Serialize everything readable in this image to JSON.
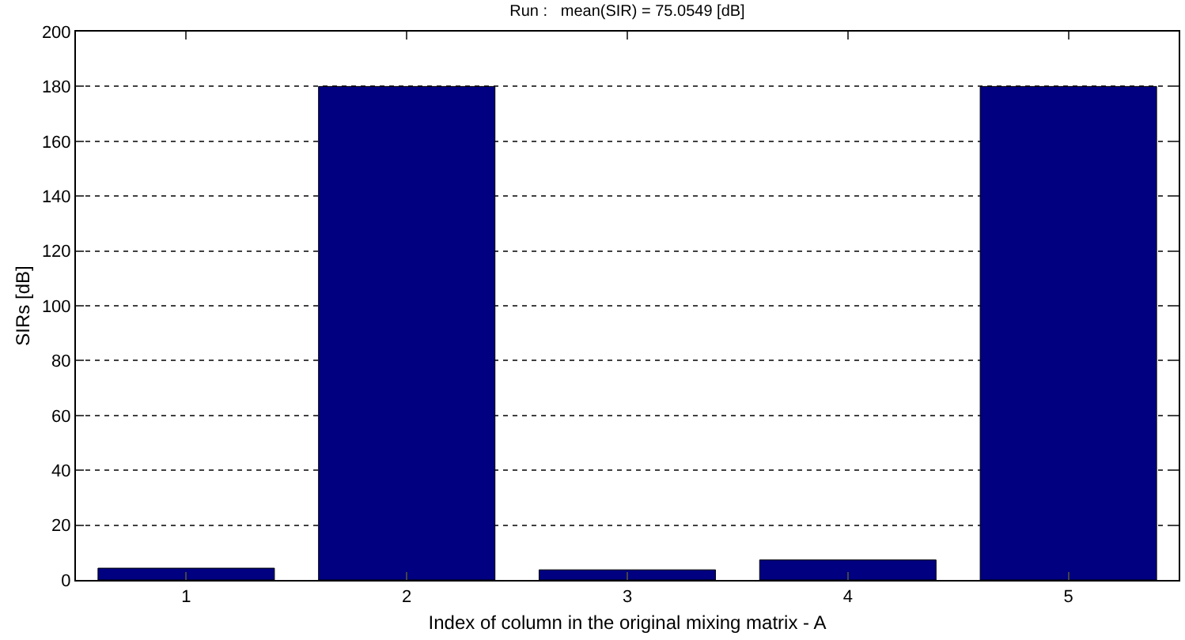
{
  "chart_data": {
    "type": "bar",
    "title": "Run :   mean(SIR) = 75.0549 [dB]",
    "xlabel": "Index of column in the original mixing matrix - A",
    "ylabel": "SIRs [dB]",
    "categories": [
      "1",
      "2",
      "3",
      "4",
      "5"
    ],
    "values": [
      4.3,
      180,
      3.7,
      7.3,
      180
    ],
    "color": "#000080",
    "ylim": [
      0,
      200
    ],
    "yticks": [
      0,
      20,
      40,
      60,
      80,
      100,
      120,
      140,
      160,
      180,
      200
    ],
    "grid": "y"
  }
}
